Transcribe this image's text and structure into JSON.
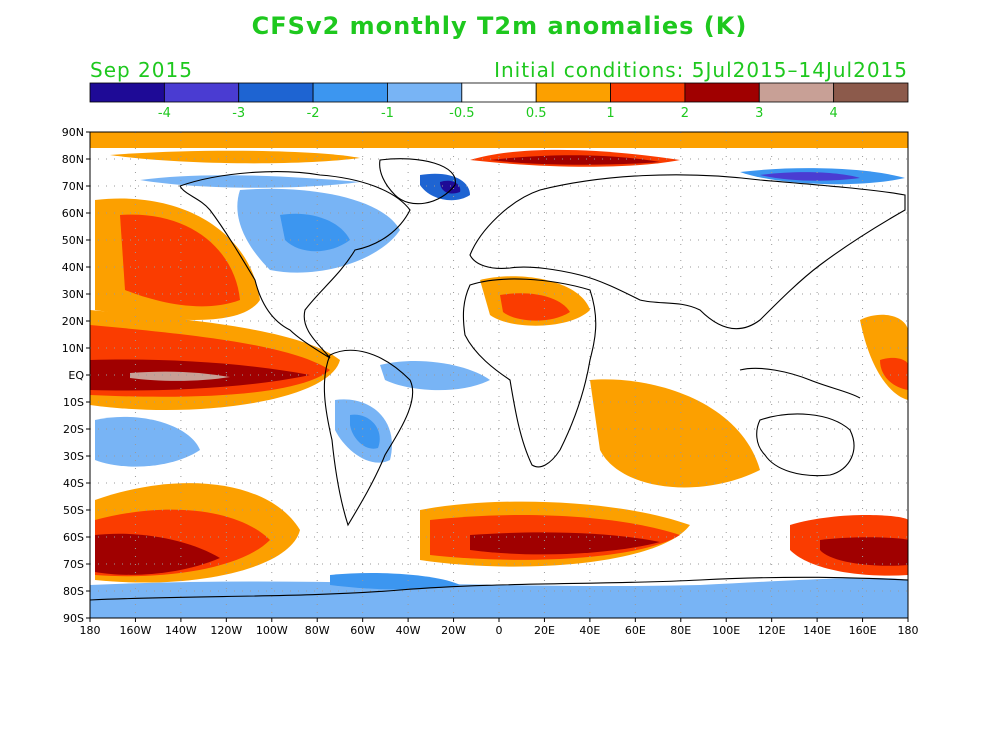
{
  "title": "CFSv2 monthly T2m anomalies (K)",
  "month": "Sep 2015",
  "initial_conditions": "Initial conditions: 5Jul2015–14Jul2015",
  "colors": {
    "text_accent": "#1ec81e",
    "scale": [
      "#1e0a96",
      "#4a3cd2",
      "#1e64d2",
      "#3c96f0",
      "#78b4f5",
      "#ffffff",
      "#fca000",
      "#fa3c00",
      "#a00000",
      "#c8a096",
      "#8c5a4b"
    ],
    "land_outline": "#000000",
    "grid": "#9a9a9a"
  },
  "colorbar_labels": [
    "-4",
    "-3",
    "-2",
    "-1",
    "-0.5",
    "0.5",
    "1",
    "2",
    "3",
    "4"
  ],
  "lat_labels": [
    "90N",
    "80N",
    "70N",
    "60N",
    "50N",
    "40N",
    "30N",
    "20N",
    "10N",
    "EQ",
    "10S",
    "20S",
    "30S",
    "40S",
    "50S",
    "60S",
    "70S",
    "80S",
    "90S"
  ],
  "lon_labels": [
    "180",
    "160W",
    "140W",
    "120W",
    "100W",
    "80W",
    "60W",
    "40W",
    "20W",
    "0",
    "20E",
    "40E",
    "60E",
    "80E",
    "100E",
    "120E",
    "140E",
    "160E",
    "180"
  ]
}
